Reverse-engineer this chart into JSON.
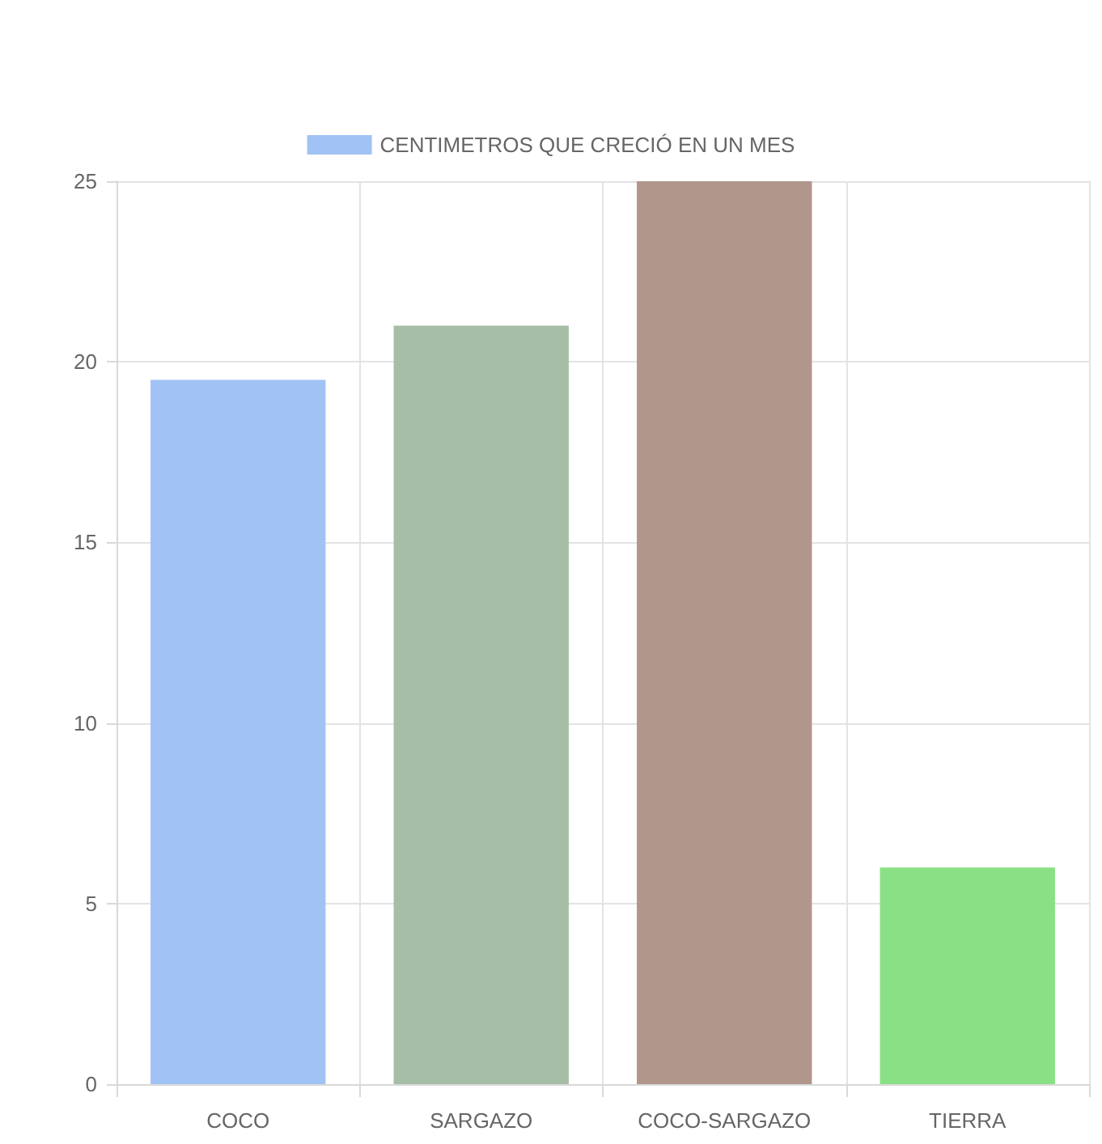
{
  "chart_data": {
    "type": "bar",
    "categories": [
      "COCO",
      "SARGAZO",
      "COCO-SARGAZO",
      "TIERRA"
    ],
    "series": [
      {
        "name": "CENTIMETROS QUE CRECIÓ EN UN MES",
        "values": [
          19.5,
          21,
          25,
          6
        ],
        "colors": [
          "#a1c2f5",
          "#a6bda6",
          "#b0968b",
          "#8ae085"
        ]
      }
    ],
    "ylim": [
      0,
      25
    ],
    "yticks": [
      0,
      5,
      10,
      15,
      20,
      25
    ],
    "grid": true,
    "legend": "top"
  }
}
